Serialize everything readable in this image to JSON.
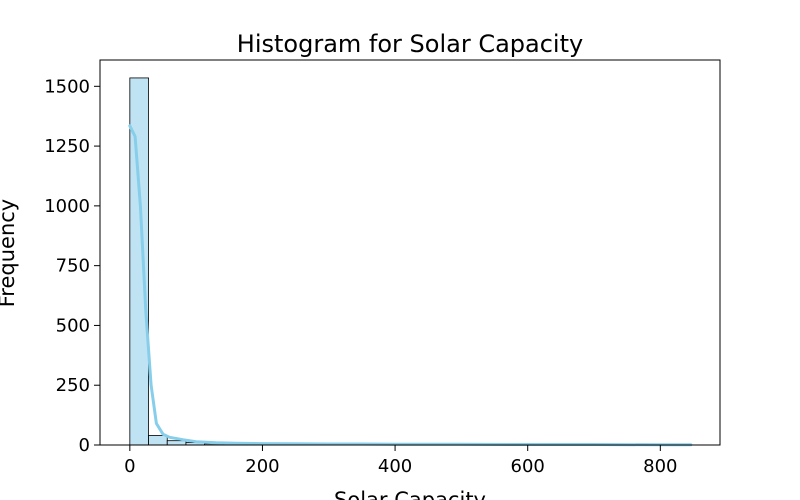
{
  "chart_data": {
    "type": "bar",
    "title": "Histogram for Solar Capacity",
    "xlabel": "Solar Capacity",
    "ylabel": "Frequency",
    "xlim": [
      -45,
      890
    ],
    "ylim": [
      0,
      1610
    ],
    "xticks": [
      0,
      200,
      400,
      600,
      800
    ],
    "yticks": [
      0,
      250,
      500,
      750,
      1000,
      1250,
      1500
    ],
    "bin_edges": [
      0,
      28.2,
      56.4,
      84.6,
      112.8,
      141,
      169.2,
      197.4,
      225.6,
      253.8,
      282,
      310.2,
      338.4,
      366.6,
      394.8,
      423,
      451.2,
      479.4,
      507.6,
      535.8,
      564,
      592.2,
      620.4,
      648.6,
      676.8,
      705,
      733.2,
      761.4,
      789.6,
      817.8,
      846
    ],
    "counts": [
      1535,
      40,
      18,
      10,
      5,
      4,
      3,
      2,
      2,
      2,
      3,
      2,
      2,
      1,
      1,
      1,
      1,
      1,
      1,
      1,
      1,
      0,
      1,
      0,
      1,
      0,
      0,
      1,
      0,
      1
    ],
    "kde": {
      "x": [
        0,
        8,
        16,
        24,
        32,
        40,
        50,
        60,
        80,
        100,
        130,
        160,
        200,
        250,
        300,
        350,
        400,
        500,
        600,
        700,
        800,
        846
      ],
      "y": [
        1335,
        1290,
        1000,
        560,
        250,
        90,
        45,
        32,
        22,
        14,
        9,
        7,
        6,
        5,
        4,
        4,
        3,
        3,
        2,
        2,
        1,
        1
      ]
    },
    "colors": {
      "bar_fill": "#bfe3f2",
      "bar_edge": "#000000",
      "kde_line": "#87ceeb"
    },
    "grid": false,
    "legend": "none"
  }
}
